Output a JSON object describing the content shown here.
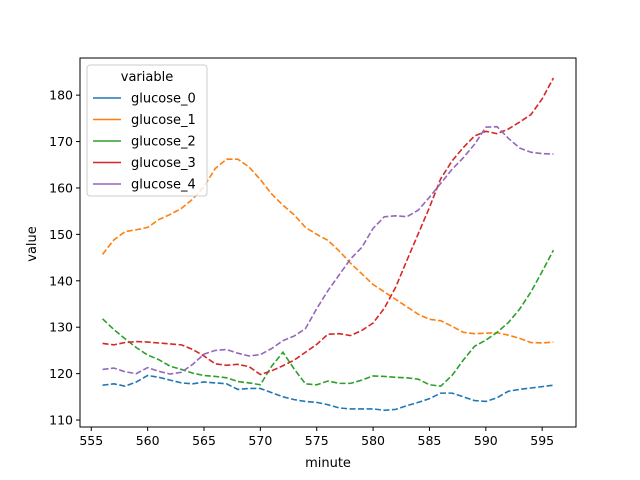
{
  "chart_data": {
    "type": "line",
    "xlabel": "minute",
    "ylabel": "value",
    "xlim": [
      554,
      598
    ],
    "ylim": [
      108.5,
      188
    ],
    "xticks": [
      555,
      560,
      565,
      570,
      575,
      580,
      585,
      590,
      595
    ],
    "yticks": [
      110,
      120,
      130,
      140,
      150,
      160,
      170,
      180
    ],
    "legend": {
      "title": "variable",
      "placement": "upper-left"
    },
    "x": [
      556,
      557,
      558,
      559,
      560,
      561,
      562,
      563,
      564,
      565,
      566,
      567,
      568,
      569,
      570,
      571,
      572,
      573,
      574,
      575,
      576,
      577,
      578,
      579,
      580,
      581,
      582,
      583,
      584,
      585,
      586,
      587,
      588,
      589,
      590,
      591,
      592,
      593,
      594,
      595,
      596
    ],
    "series": [
      {
        "name": "glucose_0",
        "color": "#1f77b4",
        "values": [
          117.5,
          117.8,
          117.3,
          118.2,
          119.6,
          119.2,
          118.6,
          118.0,
          117.8,
          118.2,
          118.0,
          117.8,
          116.6,
          116.8,
          116.8,
          115.9,
          115.0,
          114.4,
          114.0,
          113.8,
          113.3,
          112.6,
          112.4,
          112.4,
          112.4,
          112.1,
          112.3,
          113.1,
          113.8,
          114.6,
          115.8,
          115.8,
          115.0,
          114.2,
          114.0,
          114.8,
          116.2,
          116.6,
          116.9,
          117.2,
          117.5
        ]
      },
      {
        "name": "glucose_1",
        "color": "#ff7f0e",
        "values": [
          145.7,
          148.8,
          150.6,
          151.0,
          151.5,
          153.2,
          154.3,
          155.6,
          157.6,
          160.3,
          164.2,
          166.2,
          166.2,
          164.5,
          161.8,
          158.7,
          156.3,
          154.2,
          151.5,
          150.0,
          148.7,
          146.4,
          143.8,
          141.5,
          139.2,
          137.6,
          136.0,
          134.4,
          132.8,
          131.7,
          131.4,
          130.2,
          128.9,
          128.6,
          128.7,
          128.8,
          128.3,
          127.6,
          126.7,
          126.6,
          126.8
        ]
      },
      {
        "name": "glucose_2",
        "color": "#2ca02c",
        "values": [
          131.8,
          129.5,
          127.5,
          125.6,
          124.0,
          123.0,
          121.6,
          120.9,
          120.1,
          119.6,
          119.4,
          119.1,
          118.3,
          118.0,
          117.6,
          121.6,
          124.6,
          121.0,
          117.8,
          117.6,
          118.4,
          117.9,
          117.9,
          118.6,
          119.5,
          119.4,
          119.2,
          119.1,
          118.8,
          117.6,
          117.3,
          119.6,
          122.9,
          125.9,
          127.2,
          128.9,
          131.0,
          133.9,
          137.6,
          142.0,
          146.6
        ]
      },
      {
        "name": "glucose_3",
        "color": "#d62728",
        "values": [
          126.5,
          126.2,
          126.7,
          126.9,
          126.8,
          126.6,
          126.4,
          126.2,
          125.2,
          123.8,
          122.1,
          121.8,
          122.0,
          121.5,
          119.8,
          120.6,
          121.7,
          122.9,
          124.6,
          126.3,
          128.5,
          128.6,
          128.2,
          129.3,
          130.9,
          134.1,
          138.6,
          144.4,
          150.1,
          155.8,
          162.0,
          165.8,
          168.7,
          171.2,
          172.2,
          171.7,
          172.7,
          174.2,
          175.8,
          179.2,
          183.7
        ]
      },
      {
        "name": "glucose_4",
        "color": "#9467bd",
        "values": [
          120.9,
          121.2,
          120.4,
          120.0,
          121.3,
          120.5,
          119.9,
          120.3,
          122.0,
          124.2,
          125.0,
          125.2,
          124.4,
          123.8,
          124.1,
          125.4,
          127.1,
          128.1,
          129.7,
          134.0,
          137.9,
          141.3,
          144.7,
          147.2,
          151.3,
          153.8,
          154.0,
          153.8,
          155.2,
          158.0,
          161.0,
          164.0,
          166.5,
          169.4,
          173.1,
          173.2,
          170.7,
          168.6,
          167.7,
          167.4,
          167.3
        ]
      }
    ]
  }
}
